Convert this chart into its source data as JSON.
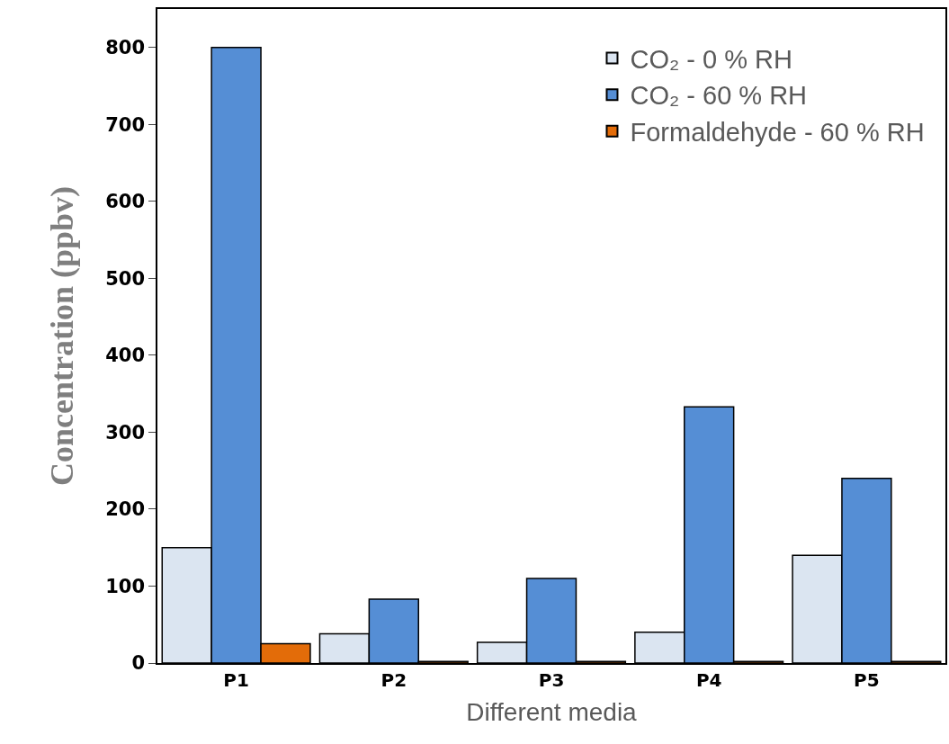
{
  "chart_data": {
    "type": "bar",
    "xlabel": "Different media",
    "ylabel": "Concentration (ppbv)",
    "categories": [
      "P1",
      "P2",
      "P3",
      "P4",
      "P5"
    ],
    "series": [
      {
        "name": "CO₂ - 0 % RH",
        "color": "#dbe5f1",
        "values": [
          150,
          38,
          27,
          40,
          140
        ]
      },
      {
        "name": "CO₂ - 60 % RH",
        "color": "#558ed5",
        "values": [
          800,
          83,
          110,
          333,
          240
        ]
      },
      {
        "name": "Formaldehyde - 60 % RH",
        "color": "#e36c09",
        "values": [
          25,
          2,
          2,
          2,
          2
        ]
      }
    ],
    "ylim": [
      0,
      850
    ],
    "yticks": [
      0,
      100,
      200,
      300,
      400,
      500,
      600,
      700,
      800
    ],
    "legend": "top right"
  }
}
